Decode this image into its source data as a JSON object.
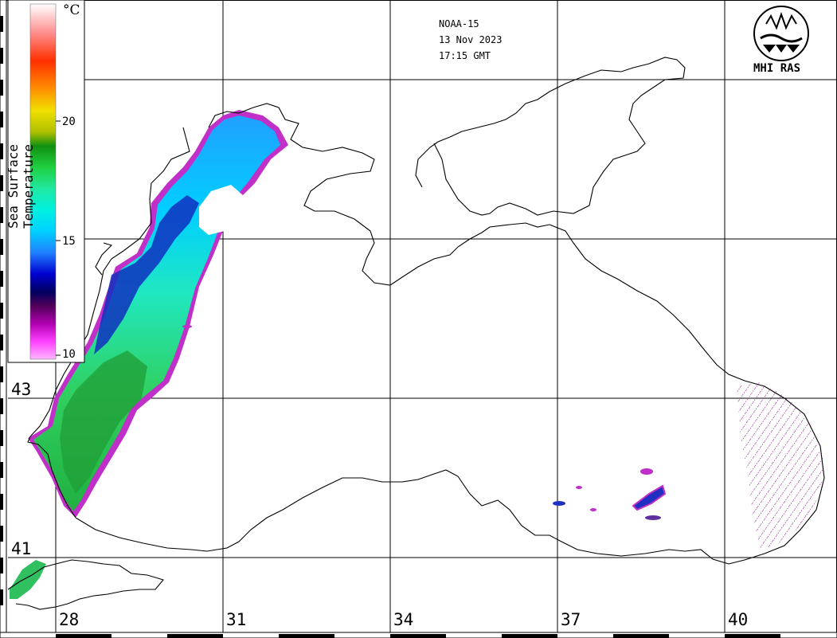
{
  "header": {
    "satellite": "NOAA-15",
    "date": "13 Nov 2023",
    "time": "17:15 GMT"
  },
  "logo": {
    "text": "MHI RAS"
  },
  "legend": {
    "title": "Sea Surface Temperature",
    "unit": "°C",
    "ticks": [
      {
        "value": 20,
        "label": "20"
      },
      {
        "value": 15,
        "label": "15"
      },
      {
        "value": 10,
        "label": "10"
      }
    ],
    "colors": [
      "#ffb6ff",
      "#ff40ff",
      "#b000b0",
      "#50005a",
      "#000060",
      "#0000d0",
      "#2080ff",
      "#00d0ff",
      "#00f0e0",
      "#20e8a0",
      "#20d040",
      "#109010",
      "#b0c000",
      "#f0e000",
      "#ff9000",
      "#ff3000",
      "#ff9090",
      "#ffffff"
    ]
  },
  "grid": {
    "latitudes": [
      "43",
      "41"
    ],
    "longitudes": [
      "28",
      "31",
      "34",
      "37",
      "40"
    ]
  },
  "colors": {
    "coast": "#000000",
    "grid": "#000000",
    "sst_cold": "#1020d0",
    "sst_mid": "#20e8c0",
    "sst_warm": "#20b040",
    "sst_edge": "#d020d0"
  }
}
